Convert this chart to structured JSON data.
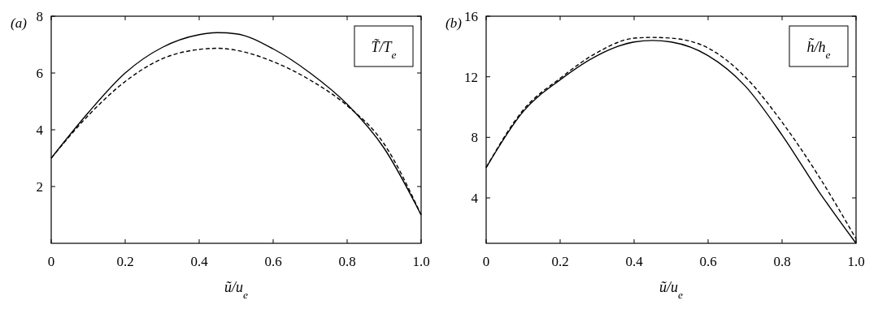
{
  "chart_data": [
    {
      "type": "line",
      "title": "(a)",
      "xlabel": "ũ/u$_{e}$",
      "ylabel": "T̃/T$_{e}$",
      "xlim": [
        0,
        1
      ],
      "ylim": [
        0,
        8
      ],
      "xticks": [
        0,
        0.2,
        0.4,
        0.6,
        0.8,
        {
          "value": 1,
          "label": "1.0"
        }
      ],
      "yticks": [
        2,
        4,
        6,
        8
      ],
      "x": [
        0,
        0.1,
        0.2,
        0.3,
        0.4,
        0.45,
        0.5,
        0.6,
        0.7,
        0.8,
        0.9,
        1
      ],
      "series": [
        {
          "color": "#000000",
          "line_style": "solid",
          "values": [
            3,
            4.6,
            6.0,
            6.9,
            7.35,
            7.42,
            7.38,
            6.85,
            6.0,
            4.9,
            3.35,
            1
          ]
        },
        {
          "color": "#000000",
          "line_style": "dashed",
          "values": [
            3,
            4.5,
            5.7,
            6.5,
            6.83,
            6.87,
            6.8,
            6.4,
            5.75,
            4.85,
            3.5,
            1
          ]
        }
      ]
    },
    {
      "type": "line",
      "title": "(b)",
      "xlabel": "ũ/u$_{e}$",
      "ylabel": "h̃/h$_{e}$",
      "xlim": [
        0,
        1
      ],
      "ylim": [
        1,
        16
      ],
      "xticks": [
        0,
        0.2,
        0.4,
        0.6,
        0.8,
        {
          "value": 1,
          "label": "1.0"
        }
      ],
      "yticks": [
        4,
        8,
        12,
        16
      ],
      "x": [
        0,
        0.1,
        0.2,
        0.3,
        0.4,
        0.45,
        0.5,
        0.6,
        0.7,
        0.8,
        0.9,
        1
      ],
      "series": [
        {
          "color": "#000000",
          "line_style": "solid",
          "values": [
            6,
            9.7,
            11.8,
            13.4,
            14.3,
            14.4,
            14.3,
            13.4,
            11.4,
            8.15,
            4.4,
            1
          ]
        },
        {
          "color": "#000000",
          "line_style": "dashed",
          "values": [
            6,
            9.8,
            11.9,
            13.6,
            14.55,
            14.6,
            14.55,
            13.9,
            12.0,
            9.0,
            5.4,
            1.3
          ]
        }
      ]
    }
  ]
}
